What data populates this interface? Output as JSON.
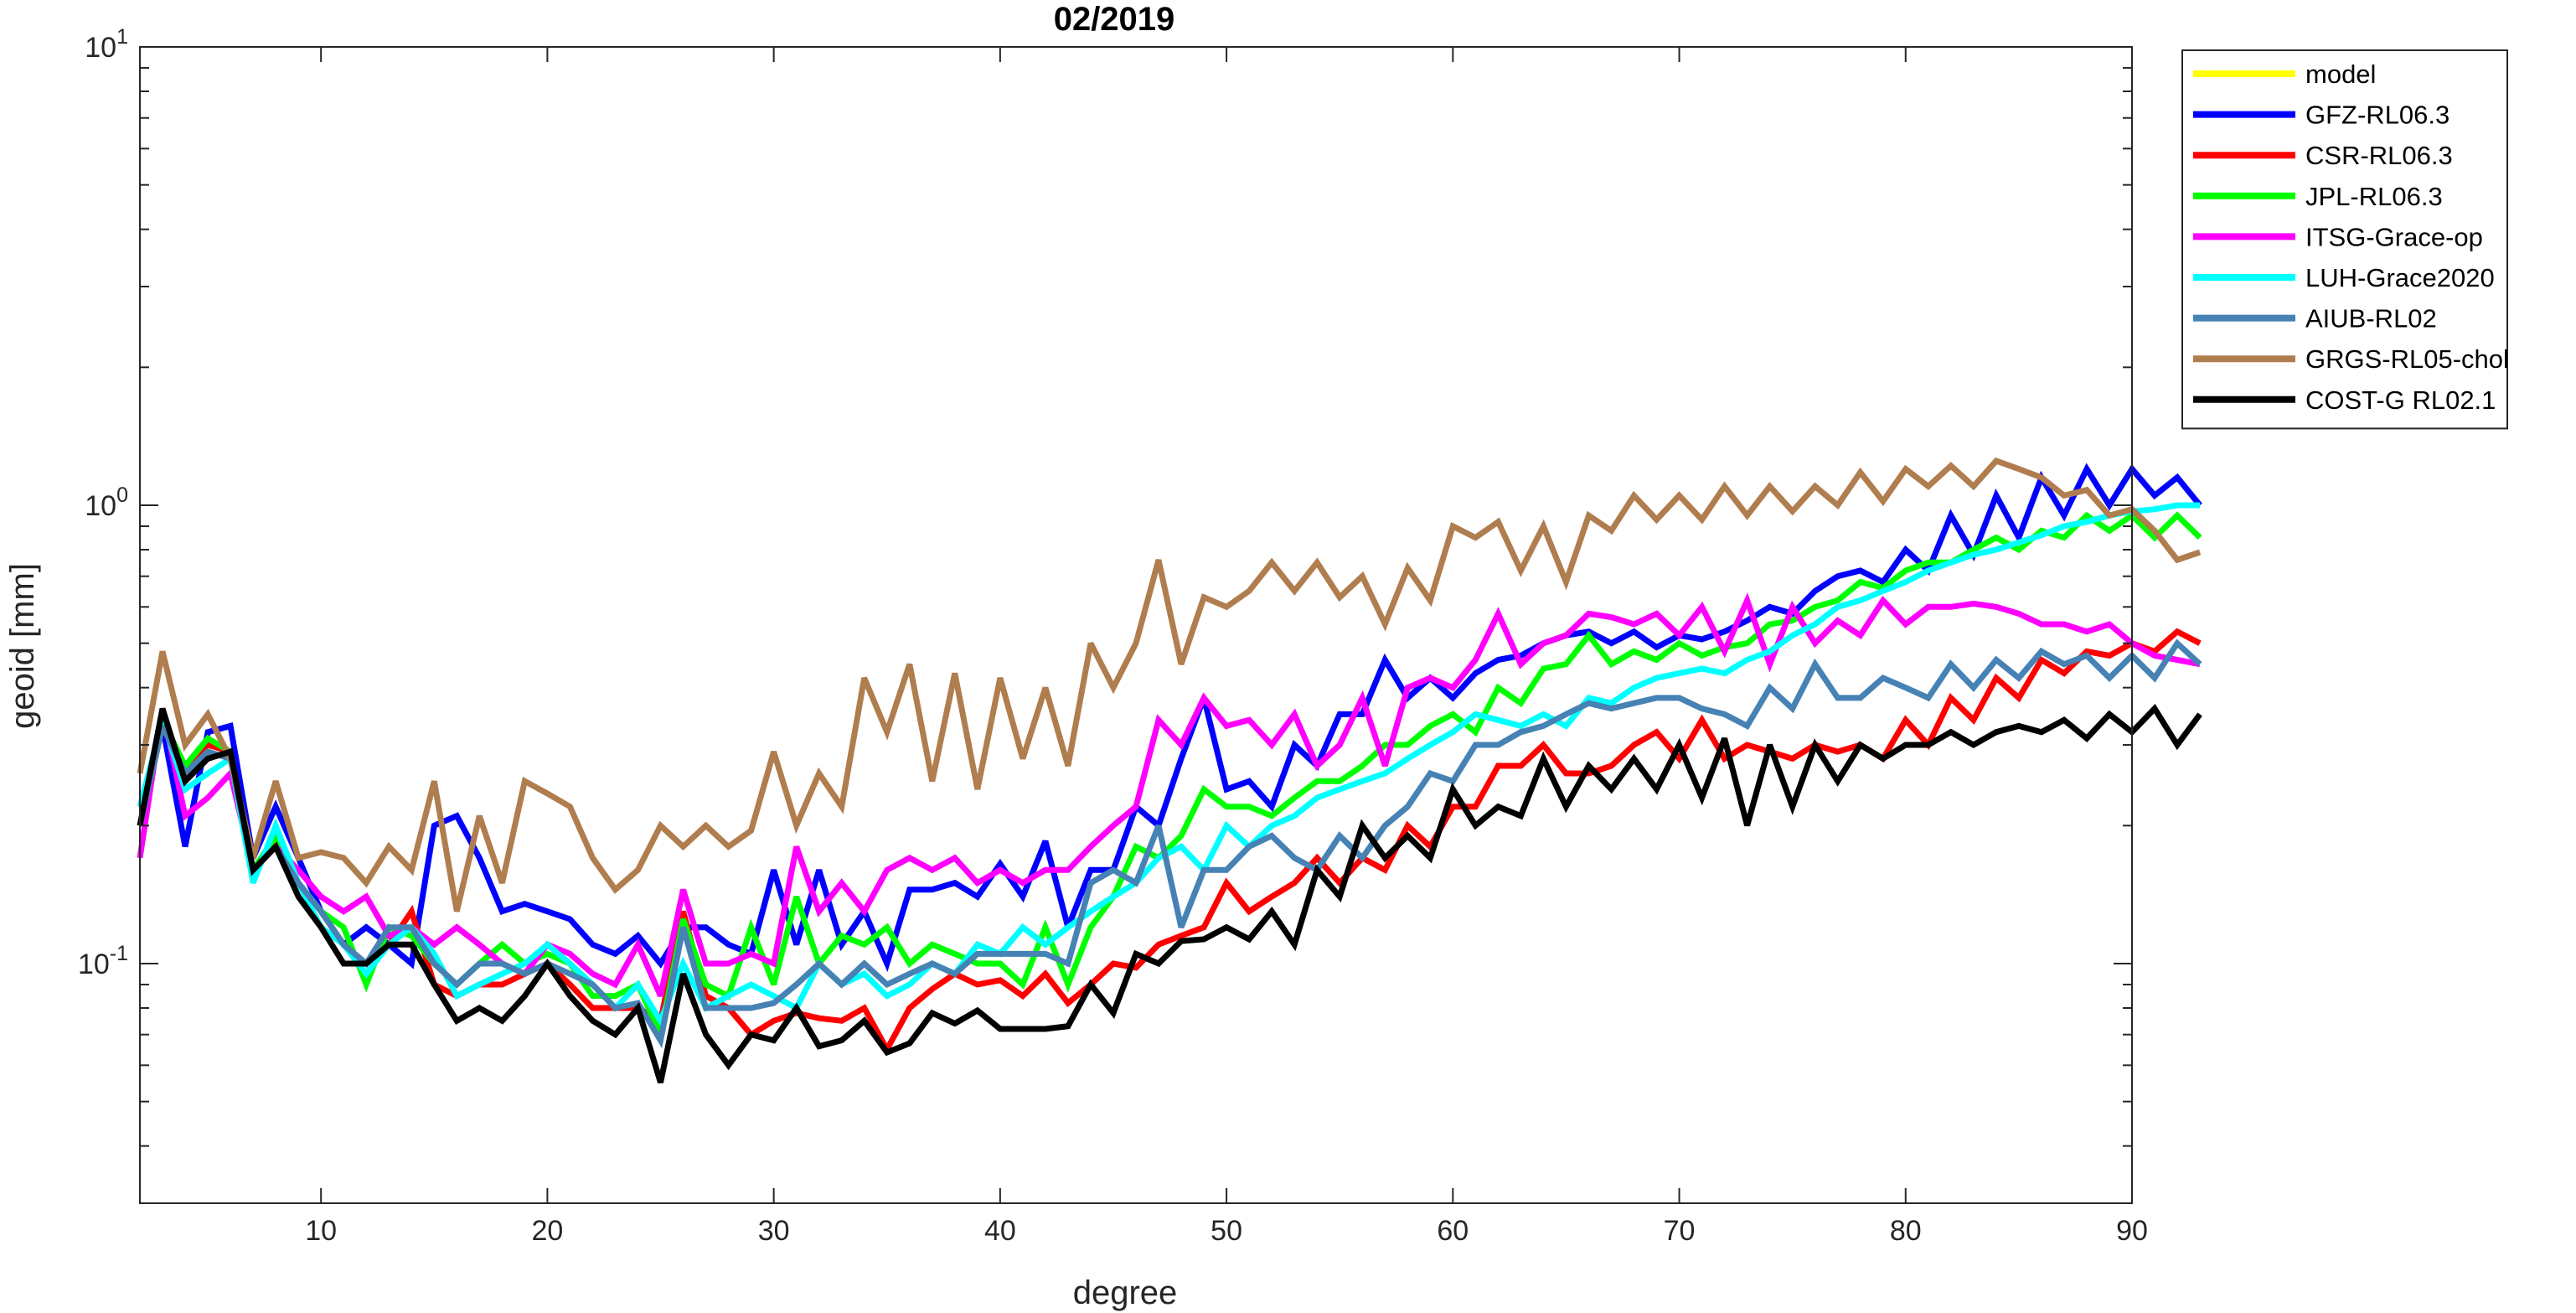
{
  "chart_data": {
    "type": "line",
    "title": "02/2019",
    "xlabel": "degree",
    "ylabel": "geoid [mm]",
    "xlim": [
      2,
      90
    ],
    "ylim": [
      0.03,
      10
    ],
    "yscale": "log",
    "xticks": [
      10,
      20,
      30,
      40,
      50,
      60,
      70,
      80,
      90
    ],
    "yticks": [
      {
        "value": 0.1,
        "base": "10",
        "exp": "-1"
      },
      {
        "value": 1,
        "base": "10",
        "exp": "0"
      },
      {
        "value": 10,
        "base": "10",
        "exp": "1"
      }
    ],
    "grid": false,
    "legend_position": "outside-top-right",
    "x_start": 2,
    "series": [
      {
        "name": "model",
        "color": "#ffff00",
        "values": []
      },
      {
        "name": "GFZ-RL06.3",
        "color": "#0000ff",
        "values": [
          0.2,
          0.33,
          0.18,
          0.32,
          0.33,
          0.17,
          0.22,
          0.17,
          0.13,
          0.11,
          0.12,
          0.11,
          0.1,
          0.2,
          0.21,
          0.17,
          0.13,
          0.135,
          0.13,
          0.125,
          0.11,
          0.105,
          0.115,
          0.1,
          0.12,
          0.12,
          0.11,
          0.105,
          0.16,
          0.11,
          0.16,
          0.11,
          0.13,
          0.1,
          0.145,
          0.145,
          0.15,
          0.14,
          0.165,
          0.14,
          0.185,
          0.12,
          0.16,
          0.16,
          0.22,
          0.2,
          0.28,
          0.38,
          0.24,
          0.25,
          0.22,
          0.3,
          0.27,
          0.35,
          0.35,
          0.46,
          0.38,
          0.42,
          0.38,
          0.43,
          0.46,
          0.47,
          0.5,
          0.52,
          0.53,
          0.5,
          0.53,
          0.49,
          0.52,
          0.51,
          0.53,
          0.56,
          0.6,
          0.58,
          0.65,
          0.7,
          0.72,
          0.68,
          0.8,
          0.72,
          0.95,
          0.78,
          1.05,
          0.85,
          1.15,
          0.95,
          1.2,
          1.0,
          1.2,
          1.05,
          1.15,
          1.0
        ]
      },
      {
        "name": "CSR-RL06.3",
        "color": "#ff0000",
        "values": [
          0.2,
          0.33,
          0.27,
          0.3,
          0.29,
          0.16,
          0.18,
          0.15,
          0.13,
          0.11,
          0.1,
          0.11,
          0.13,
          0.09,
          0.085,
          0.09,
          0.09,
          0.095,
          0.1,
          0.09,
          0.08,
          0.08,
          0.08,
          0.075,
          0.13,
          0.085,
          0.08,
          0.07,
          0.075,
          0.078,
          0.076,
          0.075,
          0.08,
          0.065,
          0.08,
          0.088,
          0.095,
          0.09,
          0.092,
          0.085,
          0.095,
          0.082,
          0.09,
          0.1,
          0.098,
          0.11,
          0.115,
          0.12,
          0.15,
          0.13,
          0.14,
          0.15,
          0.17,
          0.15,
          0.17,
          0.16,
          0.2,
          0.18,
          0.22,
          0.22,
          0.27,
          0.27,
          0.3,
          0.26,
          0.26,
          0.27,
          0.3,
          0.32,
          0.28,
          0.34,
          0.28,
          0.3,
          0.29,
          0.28,
          0.3,
          0.29,
          0.3,
          0.28,
          0.34,
          0.3,
          0.38,
          0.34,
          0.42,
          0.38,
          0.46,
          0.43,
          0.48,
          0.47,
          0.5,
          0.48,
          0.53,
          0.5
        ]
      },
      {
        "name": "JPL-RL06.3",
        "color": "#00ff00",
        "values": [
          0.2,
          0.34,
          0.27,
          0.31,
          0.29,
          0.16,
          0.19,
          0.15,
          0.13,
          0.12,
          0.09,
          0.12,
          0.115,
          0.1,
          0.09,
          0.1,
          0.11,
          0.1,
          0.105,
          0.1,
          0.085,
          0.085,
          0.09,
          0.07,
          0.125,
          0.09,
          0.085,
          0.12,
          0.09,
          0.14,
          0.1,
          0.115,
          0.11,
          0.12,
          0.1,
          0.11,
          0.105,
          0.1,
          0.1,
          0.09,
          0.12,
          0.09,
          0.12,
          0.14,
          0.18,
          0.17,
          0.19,
          0.24,
          0.22,
          0.22,
          0.21,
          0.23,
          0.25,
          0.25,
          0.27,
          0.3,
          0.3,
          0.33,
          0.35,
          0.32,
          0.4,
          0.37,
          0.44,
          0.45,
          0.52,
          0.45,
          0.48,
          0.46,
          0.5,
          0.47,
          0.49,
          0.5,
          0.55,
          0.56,
          0.6,
          0.62,
          0.68,
          0.66,
          0.72,
          0.75,
          0.75,
          0.8,
          0.85,
          0.8,
          0.88,
          0.85,
          0.95,
          0.88,
          0.95,
          0.85,
          0.95,
          0.85
        ]
      },
      {
        "name": "ITSG-Grace-op",
        "color": "#ff00ff",
        "values": [
          0.17,
          0.36,
          0.21,
          0.23,
          0.26,
          0.16,
          0.18,
          0.16,
          0.14,
          0.13,
          0.14,
          0.115,
          0.12,
          0.11,
          0.12,
          0.11,
          0.1,
          0.095,
          0.11,
          0.105,
          0.095,
          0.09,
          0.11,
          0.085,
          0.145,
          0.1,
          0.1,
          0.105,
          0.1,
          0.18,
          0.13,
          0.15,
          0.13,
          0.16,
          0.17,
          0.16,
          0.17,
          0.15,
          0.16,
          0.15,
          0.16,
          0.16,
          0.18,
          0.2,
          0.22,
          0.34,
          0.3,
          0.38,
          0.33,
          0.34,
          0.3,
          0.35,
          0.27,
          0.3,
          0.38,
          0.27,
          0.4,
          0.42,
          0.4,
          0.46,
          0.58,
          0.45,
          0.5,
          0.52,
          0.58,
          0.57,
          0.55,
          0.58,
          0.52,
          0.6,
          0.48,
          0.62,
          0.45,
          0.6,
          0.5,
          0.56,
          0.52,
          0.62,
          0.55,
          0.6,
          0.6,
          0.61,
          0.6,
          0.58,
          0.55,
          0.55,
          0.53,
          0.55,
          0.5,
          0.47,
          0.46,
          0.45
        ]
      },
      {
        "name": "LUH-Grace2020",
        "color": "#00ffff",
        "values": [
          0.22,
          0.34,
          0.24,
          0.26,
          0.28,
          0.15,
          0.2,
          0.15,
          0.12,
          0.11,
          0.095,
          0.11,
          0.12,
          0.105,
          0.085,
          0.09,
          0.095,
          0.1,
          0.11,
          0.1,
          0.09,
          0.08,
          0.09,
          0.075,
          0.1,
          0.08,
          0.085,
          0.09,
          0.085,
          0.08,
          0.1,
          0.09,
          0.095,
          0.085,
          0.09,
          0.1,
          0.095,
          0.11,
          0.105,
          0.12,
          0.11,
          0.12,
          0.13,
          0.14,
          0.15,
          0.17,
          0.18,
          0.16,
          0.2,
          0.18,
          0.2,
          0.21,
          0.23,
          0.24,
          0.25,
          0.26,
          0.28,
          0.3,
          0.32,
          0.35,
          0.34,
          0.33,
          0.35,
          0.33,
          0.38,
          0.37,
          0.4,
          0.42,
          0.43,
          0.44,
          0.43,
          0.46,
          0.48,
          0.52,
          0.55,
          0.6,
          0.62,
          0.65,
          0.68,
          0.72,
          0.75,
          0.78,
          0.8,
          0.83,
          0.86,
          0.9,
          0.92,
          0.95,
          0.97,
          0.98,
          1.0,
          1.0
        ]
      },
      {
        "name": "AIUB-RL02",
        "color": "#4682b4",
        "values": [
          0.2,
          0.33,
          0.26,
          0.29,
          0.28,
          0.16,
          0.18,
          0.15,
          0.13,
          0.11,
          0.1,
          0.12,
          0.12,
          0.1,
          0.09,
          0.1,
          0.1,
          0.095,
          0.1,
          0.095,
          0.09,
          0.08,
          0.082,
          0.068,
          0.12,
          0.08,
          0.08,
          0.08,
          0.082,
          0.09,
          0.1,
          0.09,
          0.1,
          0.09,
          0.095,
          0.1,
          0.095,
          0.105,
          0.105,
          0.105,
          0.105,
          0.1,
          0.15,
          0.16,
          0.15,
          0.2,
          0.12,
          0.16,
          0.16,
          0.18,
          0.19,
          0.17,
          0.16,
          0.19,
          0.17,
          0.2,
          0.22,
          0.26,
          0.25,
          0.3,
          0.3,
          0.32,
          0.33,
          0.35,
          0.37,
          0.36,
          0.37,
          0.38,
          0.38,
          0.36,
          0.35,
          0.33,
          0.4,
          0.36,
          0.45,
          0.38,
          0.38,
          0.42,
          0.4,
          0.38,
          0.45,
          0.4,
          0.46,
          0.42,
          0.48,
          0.45,
          0.47,
          0.42,
          0.47,
          0.42,
          0.5,
          0.45
        ]
      },
      {
        "name": "GRGS-RL05-chol",
        "color": "#b07d4f",
        "values": [
          0.26,
          0.48,
          0.3,
          0.35,
          0.28,
          0.17,
          0.25,
          0.17,
          0.175,
          0.17,
          0.15,
          0.18,
          0.16,
          0.25,
          0.13,
          0.21,
          0.15,
          0.25,
          0.235,
          0.22,
          0.17,
          0.145,
          0.16,
          0.2,
          0.18,
          0.2,
          0.18,
          0.195,
          0.29,
          0.2,
          0.26,
          0.22,
          0.42,
          0.32,
          0.45,
          0.25,
          0.43,
          0.24,
          0.42,
          0.28,
          0.4,
          0.27,
          0.5,
          0.4,
          0.5,
          0.76,
          0.45,
          0.63,
          0.6,
          0.65,
          0.75,
          0.65,
          0.75,
          0.63,
          0.7,
          0.55,
          0.73,
          0.62,
          0.9,
          0.85,
          0.92,
          0.72,
          0.9,
          0.68,
          0.95,
          0.88,
          1.05,
          0.93,
          1.05,
          0.93,
          1.1,
          0.95,
          1.1,
          0.97,
          1.1,
          1.0,
          1.18,
          1.02,
          1.2,
          1.1,
          1.22,
          1.1,
          1.25,
          1.2,
          1.15,
          1.05,
          1.08,
          0.95,
          0.98,
          0.88,
          0.76,
          0.79
        ]
      },
      {
        "name": "COST-G RL02.1",
        "color": "#000000",
        "values": [
          0.2,
          0.36,
          0.25,
          0.28,
          0.29,
          0.16,
          0.18,
          0.14,
          0.12,
          0.1,
          0.1,
          0.11,
          0.11,
          0.09,
          0.075,
          0.08,
          0.075,
          0.085,
          0.1,
          0.085,
          0.075,
          0.07,
          0.08,
          0.055,
          0.095,
          0.07,
          0.06,
          0.07,
          0.068,
          0.08,
          0.066,
          0.068,
          0.075,
          0.064,
          0.067,
          0.078,
          0.074,
          0.079,
          0.072,
          0.072,
          0.072,
          0.073,
          0.09,
          0.078,
          0.105,
          0.1,
          0.112,
          0.113,
          0.12,
          0.113,
          0.13,
          0.11,
          0.16,
          0.14,
          0.2,
          0.17,
          0.19,
          0.17,
          0.24,
          0.2,
          0.22,
          0.21,
          0.28,
          0.22,
          0.27,
          0.24,
          0.28,
          0.24,
          0.3,
          0.23,
          0.31,
          0.2,
          0.3,
          0.22,
          0.3,
          0.25,
          0.3,
          0.28,
          0.3,
          0.3,
          0.32,
          0.3,
          0.32,
          0.33,
          0.32,
          0.34,
          0.31,
          0.35,
          0.32,
          0.36,
          0.3,
          0.35
        ]
      }
    ]
  }
}
